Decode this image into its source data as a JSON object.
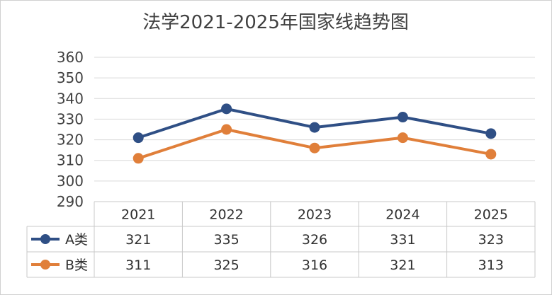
{
  "chart_data": {
    "type": "line",
    "title": "法学2021-2025年国家线趋势图",
    "categories": [
      "2021",
      "2022",
      "2023",
      "2024",
      "2025"
    ],
    "series": [
      {
        "name": "A类",
        "values": [
          321,
          335,
          326,
          331,
          323
        ],
        "color": "#2F4F85"
      },
      {
        "name": "B类",
        "values": [
          311,
          325,
          316,
          321,
          313
        ],
        "color": "#E07F3A"
      }
    ],
    "ylim": [
      290,
      360
    ],
    "yticks": [
      290,
      300,
      310,
      320,
      330,
      340,
      350,
      360
    ],
    "grid": true,
    "legend": "data-table-left",
    "data_table": true
  },
  "colors": {
    "grid": "#d9d9d9",
    "table_border": "#c8c8c8",
    "frame": "#d0d0d0"
  }
}
